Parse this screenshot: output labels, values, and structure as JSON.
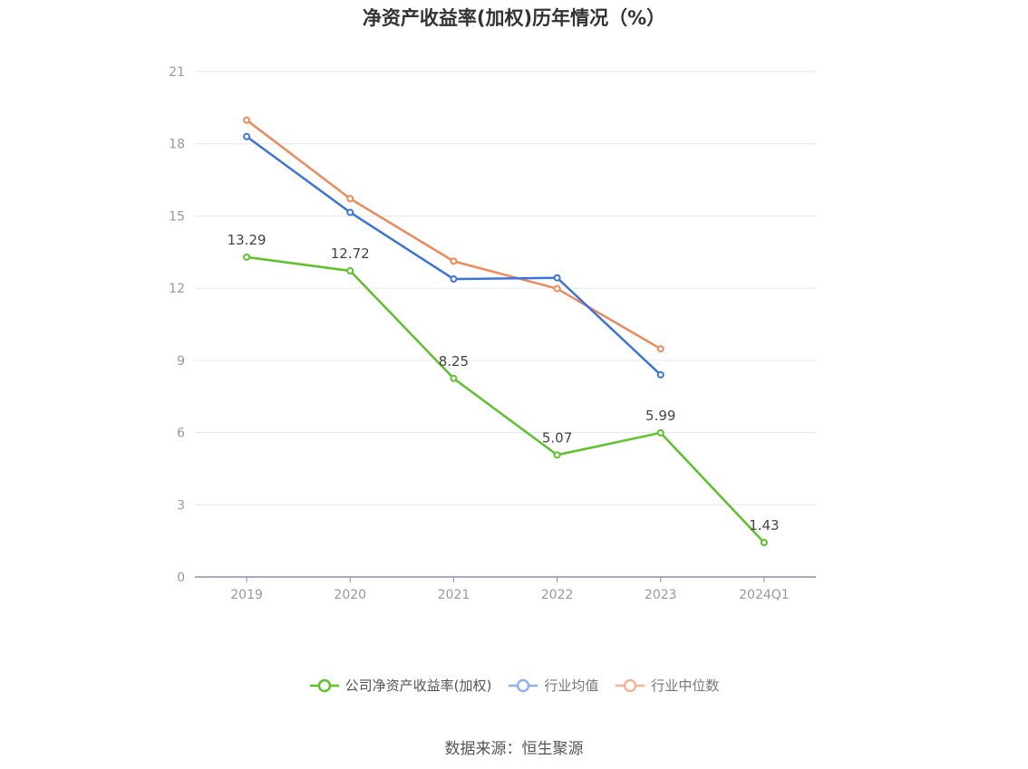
{
  "title": "净资产收益率(加权)历年情况（%）",
  "source": "数据来源：恒生聚源",
  "chart_data": {
    "type": "line",
    "title": "净资产收益率(加权)历年情况（%）",
    "categories": [
      "2019",
      "2020",
      "2021",
      "2022",
      "2023",
      "2024Q1"
    ],
    "ylim": [
      0,
      21
    ],
    "yticks": [
      0,
      3,
      6,
      9,
      12,
      15,
      18,
      21
    ],
    "grid": true,
    "legend_position": "bottom",
    "series": [
      {
        "name": "公司净资产收益率(加权)",
        "color": "#5ec22a",
        "values": [
          13.29,
          12.72,
          8.25,
          5.07,
          5.99,
          1.43
        ],
        "labels": [
          "13.29",
          "12.72",
          "8.25",
          "5.07",
          "5.99",
          "1.43"
        ]
      },
      {
        "name": "行业均值",
        "color": "#3b74dc",
        "legend_color": "#8fb2ec",
        "values": [
          18.3,
          15.15,
          12.38,
          12.43,
          8.4,
          null
        ]
      },
      {
        "name": "行业中位数",
        "color": "#f0885a",
        "legend_color": "#f6b497",
        "values": [
          18.98,
          15.72,
          13.12,
          11.98,
          9.48,
          null
        ]
      }
    ]
  }
}
